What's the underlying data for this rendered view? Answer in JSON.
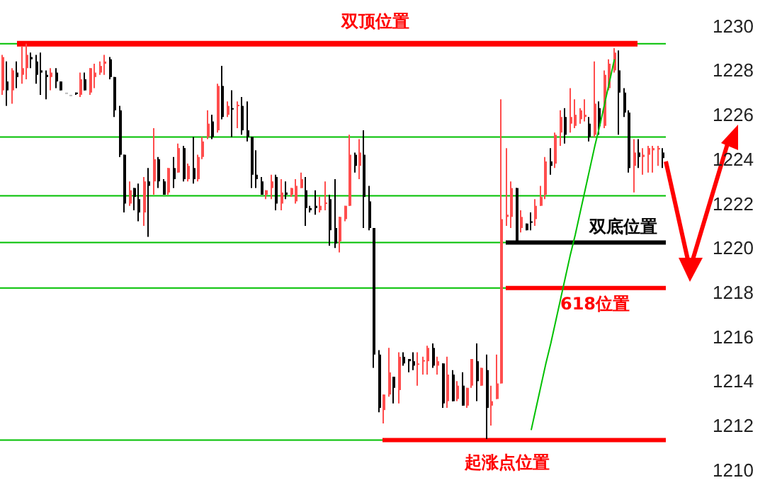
{
  "chart_data": {
    "type": "candlestick",
    "categories": [
      null,
      null,
      null,
      null,
      null,
      null,
      null,
      null,
      null,
      null,
      null,
      null,
      null,
      null,
      null,
      null,
      null,
      null,
      null,
      null,
      null,
      null,
      null,
      null,
      null,
      null,
      null,
      null,
      null,
      null,
      null,
      null,
      null,
      null,
      null,
      null,
      null,
      null,
      null,
      null,
      null,
      null,
      null,
      null,
      null,
      null,
      null,
      null,
      null,
      null,
      null,
      null,
      null,
      null,
      null,
      null,
      null,
      null,
      null,
      null,
      null,
      null,
      null,
      null,
      null,
      null,
      null,
      null,
      null,
      null,
      null,
      null,
      null,
      null,
      null,
      null,
      null,
      null,
      null,
      null,
      null,
      null,
      null,
      null,
      null,
      null,
      null,
      null,
      null,
      null,
      null,
      null,
      null,
      null,
      null,
      null,
      null,
      null,
      null,
      null,
      null,
      null,
      null,
      null,
      null,
      null,
      null,
      null,
      null,
      null,
      null,
      null,
      null,
      null,
      null,
      null,
      null,
      null,
      null,
      null,
      null,
      null,
      null,
      null,
      null,
      null,
      null,
      null,
      null,
      null,
      null,
      null,
      null,
      null,
      null,
      null
    ],
    "ohlc": [
      [
        1227.1,
        1228.7,
        1226.9,
        1228.6
      ],
      [
        1227.5,
        1228.4,
        1226.4,
        1227.1
      ],
      [
        1227.1,
        1228.1,
        1226.5,
        1228.0
      ],
      [
        1227.9,
        1228.4,
        1227.2,
        1227.7
      ],
      [
        1227.8,
        1229.1,
        1227.4,
        1228.1
      ],
      [
        1228.1,
        1229.2,
        1227.6,
        1228.7
      ],
      [
        1228.6,
        1228.8,
        1228.1,
        1228.5
      ],
      [
        1228.4,
        1228.7,
        1227.4,
        1227.8
      ],
      [
        1228.0,
        1228.8,
        1226.9,
        1227.9
      ],
      [
        1227.8,
        1228.0,
        1226.7,
        1227.7
      ],
      [
        1227.7,
        1228.1,
        1227.1,
        1227.9
      ],
      [
        1227.9,
        1228.1,
        1227.2,
        1227.5
      ],
      [
        1227.5,
        1227.5,
        1227.1,
        1227.1
      ],
      [
        1227.0,
        1227.0,
        1227.0,
        1227.0
      ],
      [
        1226.9,
        1226.9,
        1226.9,
        1226.9
      ],
      [
        1227.0,
        1227.0,
        1226.9,
        1226.95
      ],
      [
        1226.9,
        1227.9,
        1226.8,
        1227.6
      ],
      [
        1227.6,
        1227.9,
        1227.1,
        1227.1
      ],
      [
        1227.0,
        1228.1,
        1226.9,
        1228.1
      ],
      [
        1227.7,
        1228.3,
        1227.2,
        1227.9
      ],
      [
        1227.9,
        1228.4,
        1227.8,
        1228.2
      ],
      [
        1228.3,
        1228.7,
        1227.8,
        1228.4
      ],
      [
        1228.5,
        1228.6,
        1227.6,
        1227.7
      ],
      [
        1227.7,
        1227.7,
        1225.9,
        1226.2
      ],
      [
        1226.2,
        1226.4,
        1224.1,
        1224.2
      ],
      [
        1224.2,
        1224.2,
        1221.6,
        1222.0
      ],
      [
        1222.0,
        1223.0,
        1221.9,
        1222.6
      ],
      [
        1222.7,
        1222.7,
        1221.7,
        1222.3
      ],
      [
        1222.2,
        1222.9,
        1221.2,
        1221.6
      ],
      [
        1221.6,
        1223.2,
        1221.0,
        1223.0
      ],
      [
        1223.0,
        1223.6,
        1220.5,
        1222.8
      ],
      [
        1223.0,
        1225.4,
        1222.4,
        1224.0
      ],
      [
        1224.0,
        1224.1,
        1222.7,
        1223.0
      ],
      [
        1223.0,
        1223.1,
        1222.4,
        1222.4
      ],
      [
        1222.5,
        1223.6,
        1222.4,
        1223.6
      ],
      [
        1223.6,
        1224.1,
        1222.7,
        1223.1
      ],
      [
        1223.4,
        1224.7,
        1223.4,
        1224.5
      ],
      [
        1224.5,
        1224.6,
        1223.0,
        1223.1
      ],
      [
        1223.1,
        1223.8,
        1223.0,
        1223.7
      ],
      [
        1223.6,
        1225.0,
        1222.9,
        1223.1
      ],
      [
        1223.1,
        1224.2,
        1223.0,
        1224.1
      ],
      [
        1224.1,
        1225.0,
        1224.0,
        1224.8
      ],
      [
        1225.0,
        1226.2,
        1224.9,
        1225.6
      ],
      [
        1225.7,
        1226.0,
        1224.9,
        1225.0
      ],
      [
        1225.3,
        1227.4,
        1225.2,
        1227.3
      ],
      [
        1227.3,
        1228.2,
        1225.8,
        1225.9
      ],
      [
        1226.0,
        1226.6,
        1225.9,
        1226.4
      ],
      [
        1226.3,
        1227.1,
        1225.0,
        1226.25
      ],
      [
        1226.4,
        1226.6,
        1225.4,
        1226.45
      ],
      [
        1226.4,
        1226.8,
        1225.1,
        1225.3
      ],
      [
        1225.3,
        1226.6,
        1224.8,
        1225.0
      ],
      [
        1225.0,
        1225.0,
        1222.7,
        1223.3
      ],
      [
        1223.3,
        1224.4,
        1222.7,
        1223.1
      ],
      [
        1223.0,
        1223.2,
        1222.4,
        1222.4
      ],
      [
        1222.4,
        1222.6,
        1222.2,
        1222.6
      ],
      [
        1222.7,
        1223.3,
        1222.2,
        1223.0
      ],
      [
        1223.2,
        1223.3,
        1221.7,
        1222.0
      ],
      [
        1222.0,
        1223.1,
        1221.7,
        1222.5
      ],
      [
        1222.5,
        1223.0,
        1222.2,
        1222.4
      ],
      [
        1222.4,
        1222.7,
        1222.3,
        1222.7
      ],
      [
        1222.1,
        1223.1,
        1222.0,
        1222.8
      ],
      [
        1222.7,
        1223.4,
        1222.7,
        1223.1
      ],
      [
        1222.6,
        1223.2,
        1221.0,
        1221.8
      ],
      [
        1221.8,
        1221.9,
        1221.6,
        1221.7
      ],
      [
        1221.9,
        1222.6,
        1221.5,
        1221.8
      ],
      [
        1221.7,
        1222.3,
        1221.6,
        1221.9
      ],
      [
        1222.0,
        1223.0,
        1221.7,
        1222.05
      ],
      [
        1222.2,
        1222.4,
        1220.1,
        1220.8
      ],
      [
        1220.9,
        1223.1,
        1220.0,
        1220.2
      ],
      [
        1220.3,
        1221.4,
        1219.8,
        1221.4
      ],
      [
        1221.3,
        1221.9,
        1221.2,
        1221.9
      ],
      [
        1221.9,
        1225.1,
        1221.9,
        1224.2
      ],
      [
        1224.2,
        1224.3,
        1223.4,
        1223.7
      ],
      [
        1223.7,
        1224.9,
        1223.1,
        1224.3
      ],
      [
        1224.2,
        1225.3,
        1220.9,
        1222.3
      ],
      [
        1222.1,
        1222.8,
        1220.8,
        1220.9
      ],
      [
        1220.9,
        1220.9,
        1214.6,
        1215.2
      ],
      [
        1215.2,
        1215.4,
        1212.6,
        1212.8
      ],
      [
        1212.7,
        1213.4,
        1212.1,
        1213.4
      ],
      [
        1213.4,
        1215.5,
        1213.3,
        1214.4
      ],
      [
        1214.2,
        1214.2,
        1213.0,
        1213.7
      ],
      [
        1213.6,
        1215.3,
        1213.0,
        1215.1
      ],
      [
        1215.1,
        1215.3,
        1214.7,
        1214.8
      ],
      [
        1215.0,
        1215.0,
        1214.4,
        1214.9
      ],
      [
        1214.9,
        1215.3,
        1214.5,
        1214.7
      ],
      [
        1214.75,
        1215.3,
        1213.8,
        1214.8
      ],
      [
        1214.9,
        1215.1,
        1214.3,
        1214.95
      ],
      [
        1214.9,
        1215.6,
        1214.3,
        1215.5
      ],
      [
        1215.5,
        1215.7,
        1214.6,
        1214.7
      ],
      [
        1214.7,
        1215.1,
        1214.3,
        1214.9
      ],
      [
        1214.8,
        1214.8,
        1212.8,
        1213.0
      ],
      [
        1213.1,
        1215.1,
        1212.8,
        1214.3
      ],
      [
        1214.3,
        1214.5,
        1213.1,
        1213.1
      ],
      [
        1213.2,
        1214.0,
        1213.1,
        1213.8
      ],
      [
        1213.8,
        1214.4,
        1212.9,
        1212.9
      ],
      [
        1212.9,
        1213.7,
        1212.8,
        1213.7
      ],
      [
        1213.8,
        1215.0,
        1213.7,
        1215.0
      ],
      [
        1214.9,
        1215.7,
        1213.1,
        1214.0
      ],
      [
        1213.8,
        1214.6,
        1213.8,
        1214.6
      ],
      [
        1214.5,
        1215.2,
        1211.4,
        1212.8
      ],
      [
        1212.9,
        1213.8,
        1212.0,
        1213.1
      ],
      [
        1213.2,
        1215.2,
        1213.2,
        1213.9
      ],
      [
        1213.9,
        1226.7,
        1213.9,
        1221.3
      ],
      [
        1221.4,
        1224.5,
        1221.0,
        1221.5
      ],
      [
        1221.4,
        1223.0,
        1220.9,
        1222.7
      ],
      [
        1222.7,
        1222.7,
        1220.3,
        1220.3
      ],
      [
        1220.9,
        1221.7,
        1220.7,
        1221.4
      ],
      [
        1221.1,
        1221.1,
        1220.8,
        1220.8
      ],
      [
        1221.2,
        1221.6,
        1220.8,
        1221.15
      ],
      [
        1221.3,
        1222.2,
        1221.0,
        1221.9
      ],
      [
        1221.9,
        1222.8,
        1221.9,
        1222.3
      ],
      [
        1222.4,
        1224.1,
        1222.2,
        1223.9
      ],
      [
        1223.9,
        1224.5,
        1223.3,
        1223.7
      ],
      [
        1223.8,
        1225.2,
        1223.6,
        1225.1
      ],
      [
        1225.2,
        1226.2,
        1224.6,
        1225.9
      ],
      [
        1225.9,
        1226.3,
        1224.7,
        1225.1
      ],
      [
        1225.6,
        1227.2,
        1225.2,
        1225.9
      ],
      [
        1225.5,
        1226.7,
        1225.4,
        1226.0
      ],
      [
        1225.8,
        1226.3,
        1225.6,
        1226.2
      ],
      [
        1225.9,
        1226.7,
        1225.7,
        1226.0
      ],
      [
        1225.6,
        1225.9,
        1224.8,
        1225.0
      ],
      [
        1225.1,
        1228.4,
        1225.0,
        1226.5
      ],
      [
        1226.3,
        1226.6,
        1225.1,
        1225.5
      ],
      [
        1225.5,
        1228.0,
        1225.4,
        1227.8
      ],
      [
        1227.2,
        1228.5,
        1227.1,
        1228.3
      ],
      [
        1228.0,
        1229.0,
        1227.9,
        1228.8
      ],
      [
        1228.0,
        1228.9,
        1225.1,
        1227.0
      ],
      [
        1227.0,
        1227.2,
        1225.9,
        1226.1
      ],
      [
        1226.1,
        1226.2,
        1223.4,
        1223.6
      ],
      [
        1223.7,
        1224.9,
        1222.5,
        1224.3
      ],
      [
        1224.3,
        1224.9,
        1223.6,
        1224.1
      ],
      [
        1224.1,
        1224.5,
        1223.3,
        1224.2
      ],
      [
        1224.2,
        1224.6,
        1223.4,
        1224.5
      ],
      [
        1224.4,
        1224.6,
        1223.4,
        1224.5
      ],
      [
        1224.45,
        1224.6,
        1223.7,
        1224.5
      ],
      [
        1224.3,
        1224.5,
        1223.6,
        1224.05
      ]
    ],
    "series": [
      {
        "type": "line",
        "color": "#00c000",
        "values": [
          null,
          null,
          null,
          null,
          null,
          null,
          null,
          null,
          null,
          null,
          null,
          null,
          null,
          null,
          null,
          null,
          null,
          null,
          null,
          null,
          null,
          null,
          null,
          null,
          null,
          null,
          null,
          null,
          null,
          null,
          null,
          null,
          null,
          null,
          null,
          null,
          null,
          null,
          null,
          null,
          null,
          null,
          null,
          null,
          null,
          null,
          null,
          null,
          null,
          null,
          null,
          null,
          null,
          null,
          null,
          null,
          null,
          null,
          null,
          null,
          null,
          null,
          null,
          null,
          null,
          null,
          null,
          null,
          null,
          null,
          null,
          null,
          null,
          null,
          null,
          null,
          null,
          null,
          null,
          null,
          null,
          null,
          null,
          null,
          null,
          null,
          null,
          null,
          null,
          null,
          null,
          null,
          null,
          null,
          null,
          null,
          null,
          null,
          null,
          null,
          null,
          null,
          null,
          null,
          null,
          null,
          null,
          null,
          1211.8,
          1212.8,
          1213.8,
          1214.8,
          1215.7,
          1216.7,
          1217.7,
          1218.7,
          1219.7,
          1220.6,
          1221.6,
          1222.6,
          1223.6,
          1224.6,
          1225.5,
          1226.5,
          1227.5,
          1228.5,
          null,
          null,
          null,
          null,
          null,
          null,
          null,
          null,
          null,
          null
        ]
      }
    ],
    "ylim": [
      1209.1,
      1231.17
    ],
    "yticks": [
      1210,
      1212,
      1214,
      1216,
      1218,
      1220,
      1222,
      1224,
      1226,
      1228,
      1230
    ],
    "tick_labels": "y",
    "ref_lines": [
      {
        "axis": "y",
        "value": 1229.2,
        "color": "#00c000"
      },
      {
        "axis": "y",
        "value": 1225,
        "color": "#00c000"
      },
      {
        "axis": "y",
        "value": 1222.35,
        "color": "#00c000"
      },
      {
        "axis": "y",
        "value": 1220.25,
        "color": "#00c000"
      },
      {
        "axis": "y",
        "value": 1218.2,
        "color": "#00c000"
      },
      {
        "axis": "y",
        "value": 1211.35,
        "color": "#00c000"
      },
      {
        "axis": "y",
        "value": 1229.2,
        "label": "双顶位置",
        "color": "#ff0000"
      },
      {
        "axis": "y",
        "value": 1220.25,
        "label": "双底位置",
        "color": "#000000"
      },
      {
        "axis": "y",
        "value": 1218.2,
        "label": "618位置",
        "color": "#ff0000"
      },
      {
        "axis": "y",
        "value": 1211.35,
        "label": "起涨点位置",
        "color": "#ff0000"
      }
    ]
  }
}
